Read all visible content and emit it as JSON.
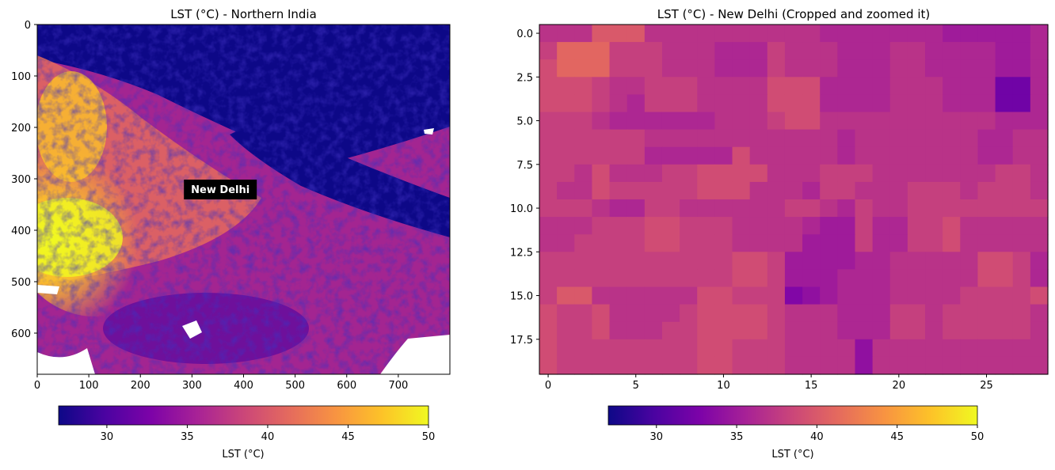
{
  "chart_data": [
    {
      "type": "heatmap",
      "title": "LST (°C) - Northern India",
      "x_ticks": [
        0,
        100,
        200,
        300,
        400,
        500,
        600,
        700
      ],
      "y_ticks": [
        0,
        100,
        200,
        300,
        400,
        500,
        600
      ],
      "xlim": [
        0,
        800
      ],
      "ylim": [
        680,
        0
      ],
      "colormap": "plasma",
      "annotation": "New Delhi",
      "annotation_position": [
        355,
        320
      ],
      "colorbar": {
        "label": "LST (°C)",
        "range": [
          27,
          50
        ],
        "ticks": [
          30,
          35,
          40,
          45,
          50
        ]
      }
    },
    {
      "type": "heatmap",
      "title": "LST (°C) - New Delhi (Cropped and zoomed it)",
      "x_ticks": [
        0,
        5,
        10,
        15,
        20,
        25
      ],
      "y_ticks": [
        "0.0",
        "2.5",
        "5.0",
        "7.5",
        "10.0",
        "12.5",
        "15.0",
        "17.5"
      ],
      "xlim": [
        -0.5,
        28.5
      ],
      "ylim": [
        19.5,
        -0.5
      ],
      "colormap": "plasma",
      "colorbar": {
        "label": "LST (°C)",
        "range": [
          27,
          50
        ],
        "ticks": [
          30,
          35,
          40,
          45,
          50
        ]
      },
      "grid": [
        [
          37,
          37,
          37,
          40,
          40,
          40,
          37,
          37,
          37,
          37,
          37,
          37,
          37,
          37,
          37,
          37,
          36,
          36,
          36,
          36,
          36,
          36,
          36,
          35,
          35,
          35,
          35,
          35,
          36
        ],
        [
          38,
          41,
          41,
          41,
          38,
          38,
          38,
          37,
          37,
          37,
          36,
          36,
          36,
          38,
          37,
          37,
          37,
          36,
          36,
          36,
          37,
          37,
          36,
          36,
          36,
          36,
          35,
          35,
          36
        ],
        [
          39,
          41,
          41,
          41,
          38,
          38,
          38,
          37,
          37,
          37,
          36,
          36,
          36,
          38,
          37,
          37,
          37,
          36,
          36,
          36,
          37,
          37,
          36,
          36,
          36,
          36,
          35,
          35,
          36
        ],
        [
          39,
          39,
          39,
          38,
          37,
          37,
          38,
          38,
          38,
          37,
          37,
          37,
          37,
          39,
          39,
          39,
          36,
          36,
          36,
          36,
          37,
          37,
          37,
          36,
          36,
          36,
          32,
          32,
          36
        ],
        [
          39,
          39,
          39,
          38,
          37,
          36,
          38,
          38,
          38,
          37,
          37,
          37,
          37,
          39,
          39,
          39,
          36,
          36,
          36,
          36,
          37,
          37,
          37,
          36,
          36,
          36,
          32,
          32,
          36
        ],
        [
          38,
          38,
          38,
          37,
          36,
          36,
          36,
          36,
          36,
          36,
          37,
          37,
          37,
          38,
          39,
          39,
          37,
          37,
          37,
          37,
          37,
          37,
          37,
          37,
          37,
          37,
          36,
          36,
          36
        ],
        [
          38,
          38,
          38,
          38,
          38,
          38,
          37,
          37,
          37,
          37,
          37,
          37,
          37,
          37,
          37,
          37,
          37,
          36,
          37,
          37,
          37,
          37,
          37,
          37,
          37,
          36,
          36,
          37,
          37
        ],
        [
          38,
          38,
          38,
          38,
          38,
          38,
          36,
          36,
          36,
          36,
          36,
          39,
          37,
          37,
          37,
          37,
          37,
          36,
          37,
          37,
          37,
          37,
          37,
          37,
          37,
          36,
          36,
          37,
          37
        ],
        [
          38,
          38,
          37,
          39,
          37,
          37,
          37,
          38,
          38,
          39,
          39,
          39,
          39,
          37,
          37,
          37,
          38,
          38,
          38,
          37,
          37,
          37,
          37,
          37,
          37,
          37,
          38,
          38,
          37
        ],
        [
          38,
          37,
          37,
          39,
          38,
          38,
          38,
          38,
          38,
          39,
          39,
          39,
          37,
          37,
          37,
          36,
          38,
          38,
          37,
          37,
          37,
          38,
          38,
          38,
          37,
          38,
          38,
          38,
          37
        ],
        [
          38,
          38,
          38,
          37,
          36,
          36,
          38,
          38,
          37,
          37,
          37,
          37,
          37,
          37,
          38,
          38,
          37,
          36,
          38,
          37,
          37,
          38,
          38,
          38,
          38,
          38,
          38,
          38,
          38
        ],
        [
          37,
          37,
          37,
          38,
          38,
          38,
          39,
          39,
          38,
          38,
          38,
          37,
          37,
          37,
          37,
          36,
          35,
          35,
          38,
          36,
          36,
          38,
          38,
          39,
          37,
          37,
          37,
          37,
          37
        ],
        [
          37,
          37,
          38,
          38,
          38,
          38,
          39,
          39,
          38,
          38,
          38,
          37,
          37,
          37,
          37,
          35,
          35,
          35,
          38,
          36,
          36,
          38,
          38,
          39,
          37,
          37,
          37,
          37,
          37
        ],
        [
          38,
          38,
          38,
          38,
          38,
          38,
          38,
          38,
          38,
          38,
          38,
          39,
          39,
          38,
          35,
          35,
          35,
          35,
          36,
          36,
          37,
          37,
          37,
          37,
          37,
          39,
          39,
          38,
          36
        ],
        [
          38,
          38,
          38,
          38,
          38,
          38,
          38,
          38,
          38,
          38,
          38,
          39,
          39,
          38,
          35,
          35,
          35,
          36,
          36,
          36,
          37,
          37,
          37,
          37,
          37,
          39,
          39,
          38,
          36
        ],
        [
          38,
          40,
          40,
          37,
          37,
          37,
          37,
          37,
          37,
          39,
          39,
          38,
          38,
          38,
          33,
          34,
          35,
          36,
          36,
          36,
          37,
          37,
          37,
          37,
          38,
          38,
          38,
          38,
          39
        ],
        [
          39,
          38,
          38,
          39,
          37,
          37,
          37,
          37,
          38,
          39,
          39,
          39,
          39,
          38,
          37,
          37,
          37,
          36,
          36,
          36,
          38,
          38,
          37,
          38,
          38,
          38,
          38,
          38,
          37
        ],
        [
          39,
          38,
          38,
          39,
          37,
          37,
          37,
          38,
          38,
          39,
          39,
          39,
          39,
          38,
          37,
          37,
          37,
          36,
          36,
          36,
          38,
          38,
          37,
          38,
          38,
          38,
          38,
          38,
          37
        ],
        [
          39,
          38,
          38,
          38,
          38,
          38,
          38,
          38,
          38,
          39,
          39,
          38,
          38,
          38,
          37,
          37,
          37,
          37,
          34,
          37,
          37,
          37,
          37,
          37,
          37,
          37,
          37,
          37,
          37
        ],
        [
          39,
          38,
          38,
          38,
          38,
          38,
          38,
          38,
          38,
          39,
          39,
          38,
          38,
          38,
          37,
          37,
          37,
          37,
          34,
          37,
          37,
          37,
          37,
          37,
          37,
          37,
          37,
          37,
          37
        ]
      ]
    }
  ]
}
